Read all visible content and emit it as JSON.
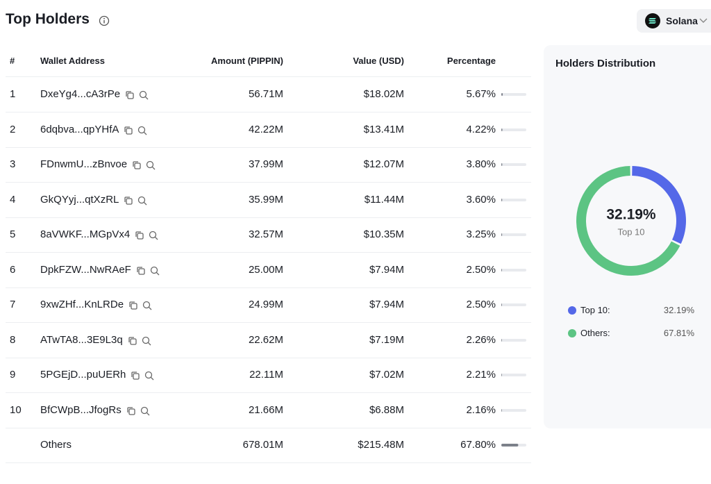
{
  "header": {
    "title": "Top Holders",
    "network": "Solana"
  },
  "table": {
    "columns": [
      "#",
      "Wallet Address",
      "Amount (PIPPIN)",
      "Value (USD)",
      "Percentage"
    ],
    "rows": [
      {
        "rank": "1",
        "address": "DxeYg4...cA3rPe",
        "amount": "56.71M",
        "value": "$18.02M",
        "percent": 5.67,
        "percent_label": "5.67%"
      },
      {
        "rank": "2",
        "address": "6dqbva...qpYHfA",
        "amount": "42.22M",
        "value": "$13.41M",
        "percent": 4.22,
        "percent_label": "4.22%"
      },
      {
        "rank": "3",
        "address": "FDnwmU...zBnvoe",
        "amount": "37.99M",
        "value": "$12.07M",
        "percent": 3.8,
        "percent_label": "3.80%"
      },
      {
        "rank": "4",
        "address": "GkQYyj...qtXzRL",
        "amount": "35.99M",
        "value": "$11.44M",
        "percent": 3.6,
        "percent_label": "3.60%"
      },
      {
        "rank": "5",
        "address": "8aVWKF...MGpVx4",
        "amount": "32.57M",
        "value": "$10.35M",
        "percent": 3.25,
        "percent_label": "3.25%"
      },
      {
        "rank": "6",
        "address": "DpkFZW...NwRAeF",
        "amount": "25.00M",
        "value": "$7.94M",
        "percent": 2.5,
        "percent_label": "2.50%"
      },
      {
        "rank": "7",
        "address": "9xwZHf...KnLRDe",
        "amount": "24.99M",
        "value": "$7.94M",
        "percent": 2.5,
        "percent_label": "2.50%"
      },
      {
        "rank": "8",
        "address": "ATwTA8...3E9L3q",
        "amount": "22.62M",
        "value": "$7.19M",
        "percent": 2.26,
        "percent_label": "2.26%"
      },
      {
        "rank": "9",
        "address": "5PGEjD...puUERh",
        "amount": "22.11M",
        "value": "$7.02M",
        "percent": 2.21,
        "percent_label": "2.21%"
      },
      {
        "rank": "10",
        "address": "BfCWpB...JfogRs",
        "amount": "21.66M",
        "value": "$6.88M",
        "percent": 2.16,
        "percent_label": "2.16%"
      },
      {
        "address": "Others",
        "amount": "678.01M",
        "value": "$215.48M",
        "percent": 67.8,
        "percent_label": "67.80%"
      }
    ]
  },
  "chart_data": {
    "type": "pie",
    "title": "Holders Distribution",
    "categories": [
      "Top 10",
      "Others"
    ],
    "values": [
      32.19,
      67.81
    ],
    "value_labels": [
      "32.19%",
      "67.81%"
    ],
    "colors": [
      "#5468e8",
      "#5cc483"
    ],
    "donut": true
  }
}
